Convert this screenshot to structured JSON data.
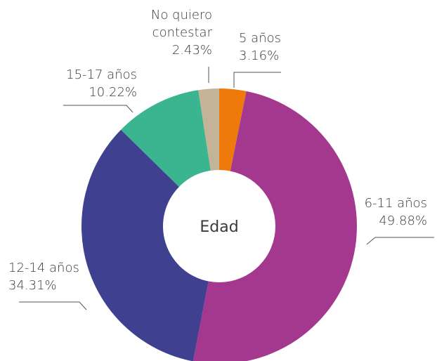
{
  "chart_data": {
    "type": "donut",
    "center_label": "Edad",
    "categories": [
      "5 años",
      "6-11 años",
      "12-14 años",
      "15-17 años",
      "No quiero contestar"
    ],
    "values": [
      3.16,
      49.88,
      34.31,
      10.22,
      2.43
    ],
    "value_labels": [
      "3.16%",
      "49.88%",
      "34.31%",
      "10.22%",
      "2.43%"
    ],
    "colors": [
      "#ee7a0b",
      "#a4378e",
      "#3f4190",
      "#3bb58f",
      "#c4b397"
    ]
  }
}
